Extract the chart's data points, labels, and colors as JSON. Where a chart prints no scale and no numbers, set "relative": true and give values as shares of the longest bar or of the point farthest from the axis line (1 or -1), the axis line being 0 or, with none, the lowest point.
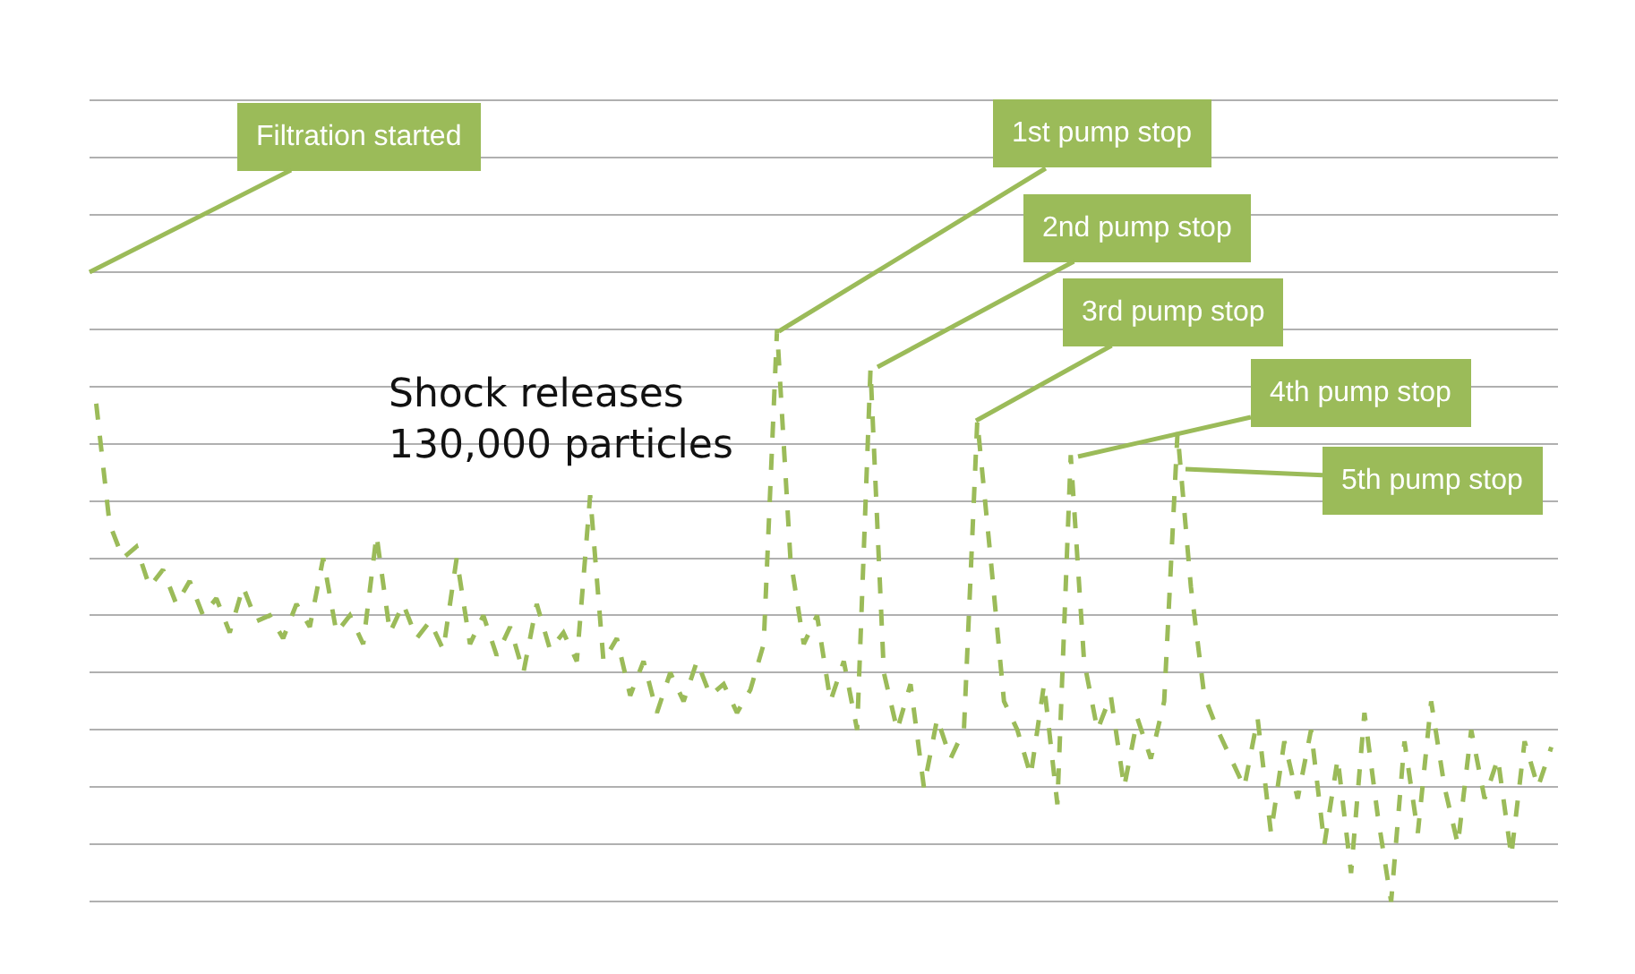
{
  "chart_data": {
    "type": "line",
    "relative": true,
    "line_style": "dashed",
    "marker": "none",
    "grid": "y",
    "legend": false,
    "categories": [
      null,
      null,
      null,
      null,
      null,
      null,
      null,
      null,
      null,
      null,
      null,
      null,
      null,
      null,
      null,
      null,
      null,
      null,
      null,
      null,
      null,
      null,
      null,
      null,
      null,
      null,
      null,
      null,
      null,
      null,
      null,
      null,
      null,
      null,
      null,
      null,
      null,
      null,
      null,
      null,
      null,
      null,
      null,
      null,
      null,
      null,
      null,
      null,
      null,
      null,
      null,
      null,
      null,
      null,
      null,
      null,
      null,
      null,
      null,
      null,
      null,
      null,
      null,
      null,
      null,
      null,
      null,
      null,
      null,
      null,
      null,
      null,
      null,
      null,
      null,
      null,
      null,
      null,
      null,
      null,
      null,
      null,
      null,
      null,
      null,
      null,
      null,
      null,
      null,
      null,
      null,
      null,
      null,
      null,
      null,
      null,
      null,
      null,
      null,
      null,
      null,
      null,
      null,
      null,
      null,
      null,
      null,
      null,
      null,
      null
    ],
    "series": [
      {
        "color": "#9bbb59",
        "values": [
          0.87,
          0.66,
          0.6,
          0.62,
          0.55,
          0.58,
          0.52,
          0.56,
          0.5,
          0.53,
          0.47,
          0.55,
          0.49,
          0.5,
          0.46,
          0.52,
          0.48,
          0.6,
          0.47,
          0.5,
          0.45,
          0.64,
          0.47,
          0.52,
          0.46,
          0.49,
          0.44,
          0.6,
          0.45,
          0.5,
          0.43,
          0.48,
          0.4,
          0.52,
          0.44,
          0.47,
          0.42,
          0.71,
          0.42,
          0.46,
          0.36,
          0.42,
          0.33,
          0.4,
          0.35,
          0.42,
          0.36,
          0.38,
          0.33,
          0.37,
          0.45,
          1.0,
          0.6,
          0.45,
          0.5,
          0.35,
          0.42,
          0.3,
          0.93,
          0.4,
          0.3,
          0.38,
          0.2,
          0.32,
          0.25,
          0.3,
          0.84,
          0.6,
          0.35,
          0.3,
          0.22,
          0.38,
          0.17,
          0.78,
          0.42,
          0.3,
          0.36,
          0.2,
          0.32,
          0.25,
          0.35,
          0.82,
          0.55,
          0.36,
          0.3,
          0.25,
          0.2,
          0.32,
          0.12,
          0.28,
          0.18,
          0.3,
          0.1,
          0.25,
          0.05,
          0.33,
          0.15,
          0.0,
          0.28,
          0.12,
          0.35,
          0.2,
          0.1,
          0.3,
          0.18,
          0.25,
          0.08,
          0.28,
          0.2,
          0.27
        ]
      }
    ],
    "annotations": [
      "Filtration started",
      "1st pump stop",
      "2nd pump stop",
      "3rd pump stop",
      "4th pump stop",
      "5th pump stop",
      "Shock releases\n130,000 particles"
    ]
  }
}
